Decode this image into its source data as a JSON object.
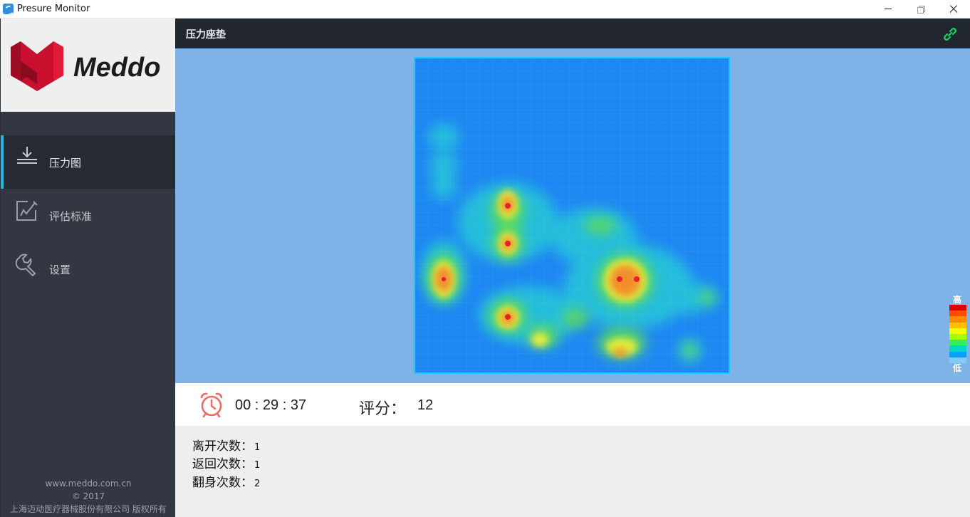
{
  "window": {
    "title": "Presure Monitor"
  },
  "sidebar": {
    "logo_text": "Meddo",
    "items": [
      {
        "label": "压力图",
        "icon": "download-icon",
        "active": true
      },
      {
        "label": "评估标准",
        "icon": "edit-icon",
        "active": false
      },
      {
        "label": "设置",
        "icon": "wrench-icon",
        "active": false
      }
    ],
    "footer": {
      "website": "www.meddo.com.cn",
      "copyright": "© 2017",
      "company": "上海迈动医疗器械股份有限公司 版权所有"
    }
  },
  "header": {
    "title": "压力座垫",
    "link_icon": "link-icon",
    "link_color": "#19d65a"
  },
  "heatmap": {
    "legend_high": "高",
    "legend_low": "低",
    "legend_colors": [
      "#e00000",
      "#ff4a00",
      "#ff8a00",
      "#ffc000",
      "#f0ff00",
      "#a0ff00",
      "#30f060",
      "#00d8c8",
      "#0aa0ff",
      "#7fcaff"
    ],
    "background_color": "#1f87f2"
  },
  "stats": {
    "clock_icon": "alarm-clock-icon",
    "timer": "00 : 29 : 37",
    "score_label": "评分：",
    "score_value": "12"
  },
  "counts": [
    {
      "label": "离开次数：",
      "value": "1"
    },
    {
      "label": "返回次数：",
      "value": "1"
    },
    {
      "label": "翻身次数：",
      "value": "2"
    }
  ]
}
